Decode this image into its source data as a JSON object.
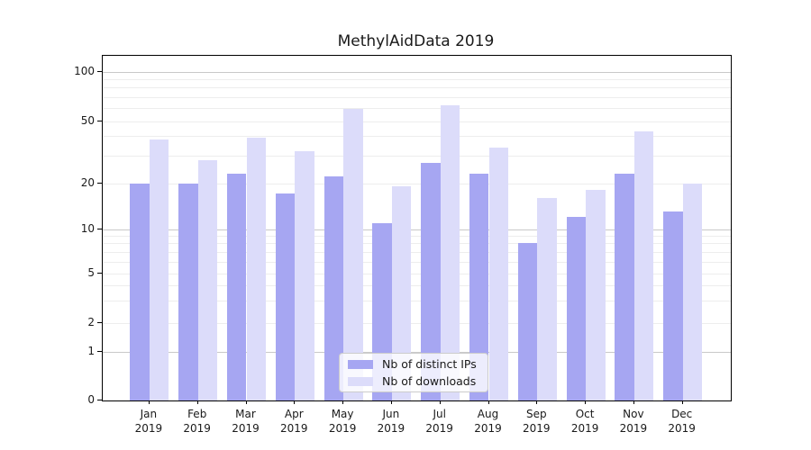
{
  "title": "MethylAidData 2019",
  "legend": {
    "items": [
      {
        "label": "Nb of distinct IPs",
        "color": "#a6a6f2"
      },
      {
        "label": "Nb of downloads",
        "color": "#dcdcfa"
      }
    ]
  },
  "axes": {
    "y_tick_labels": [
      "0",
      "1",
      "2",
      "5",
      "10",
      "20",
      "50",
      "100"
    ],
    "x_year_label": "2019"
  },
  "chart_data": {
    "type": "bar",
    "title": "MethylAidData 2019",
    "categories": [
      "Jan",
      "Feb",
      "Mar",
      "Apr",
      "May",
      "Jun",
      "Jul",
      "Aug",
      "Sep",
      "Oct",
      "Nov",
      "Dec"
    ],
    "category_year": "2019",
    "series": [
      {
        "name": "Nb of distinct IPs",
        "color": "#a6a6f2",
        "values": [
          20,
          20,
          23,
          17,
          22,
          11,
          27,
          23,
          8,
          12,
          23,
          13
        ]
      },
      {
        "name": "Nb of downloads",
        "color": "#dcdcfa",
        "values": [
          38,
          28,
          39,
          32,
          59,
          19,
          62,
          34,
          16,
          18,
          43,
          20
        ]
      }
    ],
    "xlabel": "",
    "ylabel": "",
    "yscale": "log (symlog with 0 baseline)",
    "y_ticks": [
      0,
      1,
      2,
      5,
      10,
      20,
      50,
      100
    ],
    "y_minor_gridlines": [
      2,
      3,
      4,
      5,
      6,
      7,
      8,
      9,
      20,
      30,
      40,
      50,
      60,
      70,
      80,
      90
    ],
    "y_major_gridlines": [
      1,
      10,
      100
    ],
    "grid": "on",
    "legend_position": "lower center inside plot"
  }
}
